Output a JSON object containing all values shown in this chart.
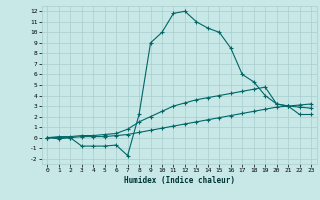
{
  "xlabel": "Humidex (Indice chaleur)",
  "bg_color": "#c8e8e8",
  "grid_color": "#a8cccc",
  "line_color": "#006666",
  "xlim": [
    -0.5,
    23.5
  ],
  "ylim": [
    -2.5,
    12.5
  ],
  "xticks": [
    0,
    1,
    2,
    3,
    4,
    5,
    6,
    7,
    8,
    9,
    10,
    11,
    12,
    13,
    14,
    15,
    16,
    17,
    18,
    19,
    20,
    21,
    22,
    23
  ],
  "yticks": [
    -2,
    -1,
    0,
    1,
    2,
    3,
    4,
    5,
    6,
    7,
    8,
    9,
    10,
    11,
    12
  ],
  "curve1_x": [
    0,
    1,
    2,
    3,
    4,
    5,
    6,
    7,
    8,
    9,
    10,
    11,
    12,
    13,
    14,
    15,
    16,
    17,
    18,
    19,
    20,
    21,
    22,
    23
  ],
  "curve1_y": [
    0.0,
    -0.1,
    0.0,
    -0.8,
    -0.8,
    -0.8,
    -0.7,
    -1.7,
    2.2,
    9.0,
    10.0,
    11.8,
    12.0,
    11.0,
    10.4,
    10.0,
    8.5,
    6.0,
    5.3,
    4.0,
    3.2,
    3.0,
    2.2,
    2.2
  ],
  "curve2_x": [
    0,
    1,
    2,
    3,
    4,
    5,
    6,
    7,
    8,
    9,
    10,
    11,
    12,
    13,
    14,
    15,
    16,
    17,
    18,
    19,
    20,
    21,
    22,
    23
  ],
  "curve2_y": [
    0.0,
    0.1,
    0.1,
    0.2,
    0.2,
    0.3,
    0.4,
    0.8,
    1.5,
    2.0,
    2.5,
    3.0,
    3.3,
    3.6,
    3.8,
    4.0,
    4.2,
    4.4,
    4.6,
    4.8,
    3.2,
    3.0,
    2.9,
    2.8
  ],
  "curve3_x": [
    0,
    1,
    2,
    3,
    4,
    5,
    6,
    7,
    8,
    9,
    10,
    11,
    12,
    13,
    14,
    15,
    16,
    17,
    18,
    19,
    20,
    21,
    22,
    23
  ],
  "curve3_y": [
    0.0,
    0.0,
    0.0,
    0.1,
    0.1,
    0.1,
    0.2,
    0.3,
    0.5,
    0.7,
    0.9,
    1.1,
    1.3,
    1.5,
    1.7,
    1.9,
    2.1,
    2.3,
    2.5,
    2.7,
    2.9,
    3.0,
    3.1,
    3.2
  ]
}
